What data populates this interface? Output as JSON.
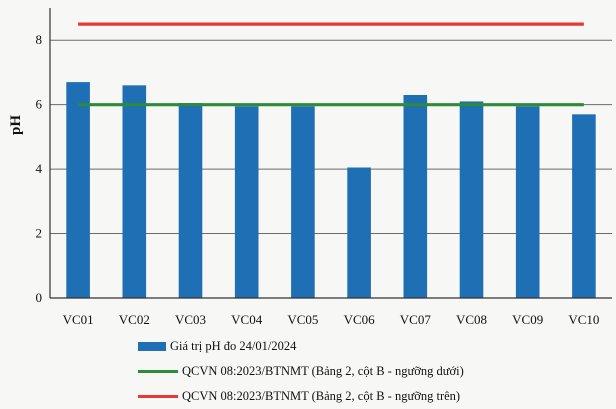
{
  "chart_data": {
    "type": "bar",
    "categories": [
      "VC01",
      "VC02",
      "VC03",
      "VC04",
      "VC05",
      "VC06",
      "VC07",
      "VC08",
      "VC09",
      "VC10"
    ],
    "series": [
      {
        "name": "Giá trị pH đo 24/01/2024",
        "type": "bar",
        "color": "#1f6fb5",
        "values": [
          6.7,
          6.6,
          6.05,
          5.95,
          5.95,
          4.05,
          6.3,
          6.1,
          5.95,
          5.7
        ]
      },
      {
        "name": "QCVN 08:2023/BTNMT (Bảng 2, cột B - ngưỡng dưới)",
        "type": "line",
        "color": "#2e8b3a",
        "values": [
          6,
          6,
          6,
          6,
          6,
          6,
          6,
          6,
          6,
          6
        ]
      },
      {
        "name": "QCVN 08:2023/BTNMT (Bảng 2, cột B - ngưỡng trên)",
        "type": "line",
        "color": "#e53935",
        "values": [
          8.5,
          8.5,
          8.5,
          8.5,
          8.5,
          8.5,
          8.5,
          8.5,
          8.5,
          8.5
        ]
      }
    ],
    "ylabel": "pH",
    "ylim": [
      0,
      9
    ],
    "yticks": [
      0,
      2,
      4,
      6,
      8
    ],
    "grid": true,
    "legend_position": "bottom"
  },
  "legend": {
    "bar_label": "Giá trị pH đo 24/01/2024",
    "lower_label": "QCVN 08:2023/BTNMT (Bảng 2, cột B - ngưỡng dưới)",
    "upper_label": "QCVN 08:2023/BTNMT (Bảng 2, cột B - ngưỡng trên)"
  }
}
